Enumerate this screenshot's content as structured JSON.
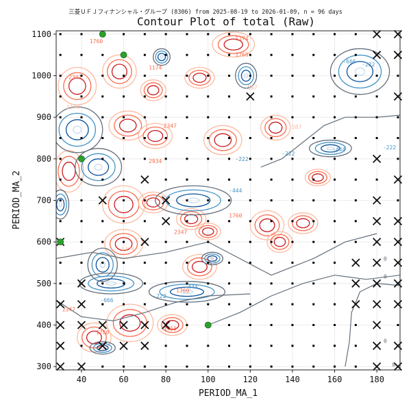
{
  "chart_data": {
    "type": "contour",
    "suptitle": "三菱ＵＦＪフィナンシャル・グループ (8306) from 2025-08-19 to 2026-01-09, n = 96 days",
    "title": "Contour Plot of total (Raw)",
    "xlabel": "PERIOD_MA_1",
    "ylabel": "PERIOD_MA_2",
    "xlim": [
      28,
      191
    ],
    "ylim": [
      292,
      1108
    ],
    "xticks": [
      "40",
      "60",
      "80",
      "100",
      "120",
      "140",
      "160",
      "180"
    ],
    "yticks": [
      "300",
      "400",
      "500",
      "600",
      "700",
      "800",
      "900",
      "1000",
      "1100"
    ],
    "grid": true,
    "contour_level_labels": [
      "-666",
      "-444",
      "-222",
      "0",
      "587",
      "1174",
      "1760",
      "2347",
      "2934"
    ],
    "colors": {
      "positive_low": "#fcbba1",
      "positive_mid": "#fb6a4a",
      "positive_high": "#cb181d",
      "negative_low": "#c6dbef",
      "negative_mid": "#4292c6",
      "negative_high": "#08519c",
      "zero": "#636e7b",
      "best_marker": "#2ca02c",
      "excluded_marker": "#111111",
      "sample_marker": "#000000"
    },
    "best_points": [
      [
        30,
        600
      ],
      [
        40,
        800
      ],
      [
        50,
        1100
      ],
      [
        60,
        1050
      ],
      [
        100,
        400
      ]
    ],
    "excluded_points": [
      [
        30,
        300
      ],
      [
        30,
        350
      ],
      [
        30,
        400
      ],
      [
        30,
        450
      ],
      [
        30,
        600
      ],
      [
        40,
        300
      ],
      [
        40,
        400
      ],
      [
        40,
        450
      ],
      [
        40,
        500
      ],
      [
        50,
        350
      ],
      [
        50,
        400
      ],
      [
        50,
        700
      ],
      [
        60,
        350
      ],
      [
        60,
        400
      ],
      [
        70,
        350
      ],
      [
        70,
        400
      ],
      [
        70,
        600
      ],
      [
        70,
        750
      ],
      [
        80,
        400
      ],
      [
        80,
        650
      ],
      [
        80,
        700
      ],
      [
        120,
        950
      ],
      [
        170,
        450
      ],
      [
        170,
        500
      ],
      [
        170,
        550
      ],
      [
        180,
        300
      ],
      [
        180,
        350
      ],
      [
        180,
        400
      ],
      [
        180,
        450
      ],
      [
        180,
        500
      ],
      [
        180,
        550
      ],
      [
        180,
        600
      ],
      [
        180,
        650
      ],
      [
        180,
        700
      ],
      [
        180,
        800
      ],
      [
        180,
        1050
      ],
      [
        180,
        1100
      ],
      [
        190,
        300
      ],
      [
        190,
        350
      ],
      [
        190,
        450
      ],
      [
        190,
        500
      ],
      [
        190,
        550
      ],
      [
        190,
        600
      ],
      [
        190,
        650
      ],
      [
        190,
        750
      ],
      [
        190,
        950
      ],
      [
        190,
        1050
      ],
      [
        190,
        1100
      ]
    ],
    "sample_grid": {
      "x_from": 30,
      "x_to": 190,
      "x_step": 10,
      "y_from": 300,
      "y_to": 1100,
      "y_step": 50
    }
  }
}
